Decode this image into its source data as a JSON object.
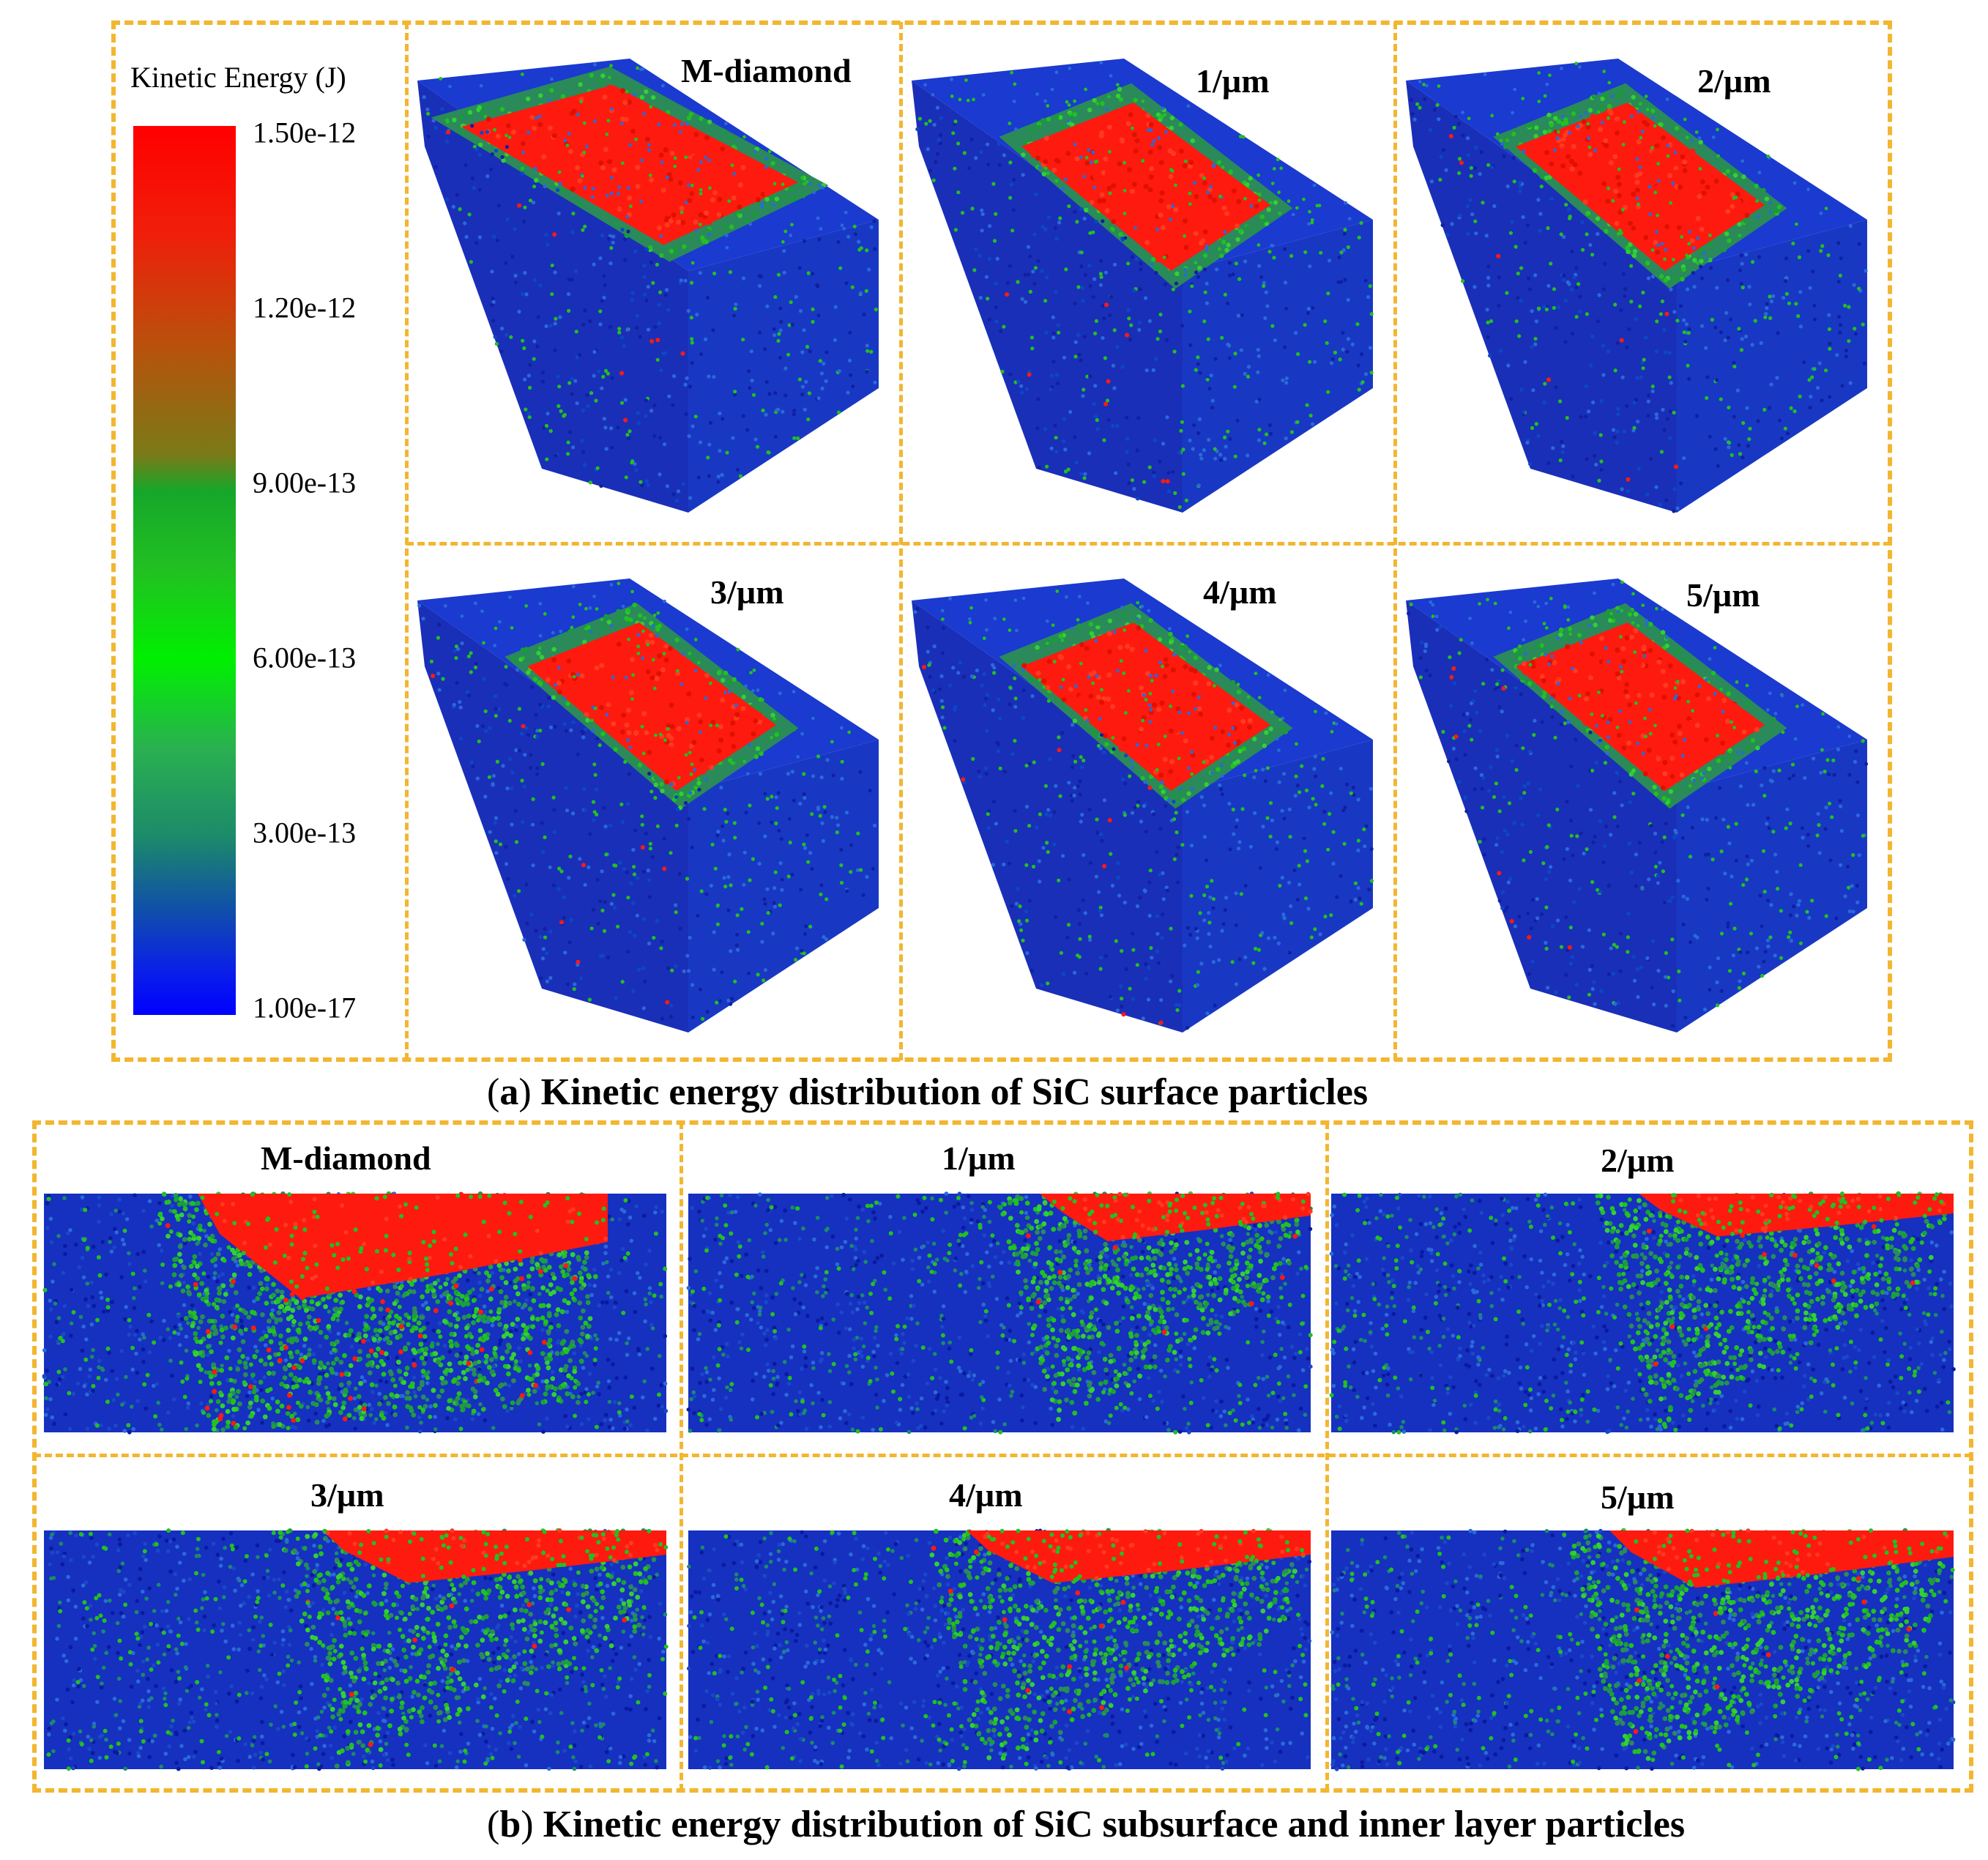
{
  "colorbar": {
    "title": "Kinetic Energy (J)",
    "ticks": [
      "1.50e-12",
      "1.20e-12",
      "9.00e-13",
      "6.00e-13",
      "3.00e-13",
      "1.00e-17"
    ],
    "colors": [
      "#ff0000",
      "#8a6a10",
      "#22b022",
      "#00ff00",
      "#1a8a50",
      "#0000ff"
    ]
  },
  "section_a": {
    "panels": [
      "M-diamond",
      "1/µm",
      "2/µm",
      "3/µm",
      "4/µm",
      "5/µm"
    ],
    "caption_letter": "a",
    "caption_text": " Kinetic energy distribution of SiC surface particles"
  },
  "section_b": {
    "panels": [
      "M-diamond",
      "1/µm",
      "2/µm",
      "3/µm",
      "4/µm",
      "5/µm"
    ],
    "caption_letter": "b",
    "caption_text": " Kinetic energy distribution of SiC subsurface and inner layer particles"
  },
  "palette": {
    "blue": "#1430c8",
    "green": "#22c022",
    "red": "#ff1a10",
    "frame": "#f2b630"
  }
}
